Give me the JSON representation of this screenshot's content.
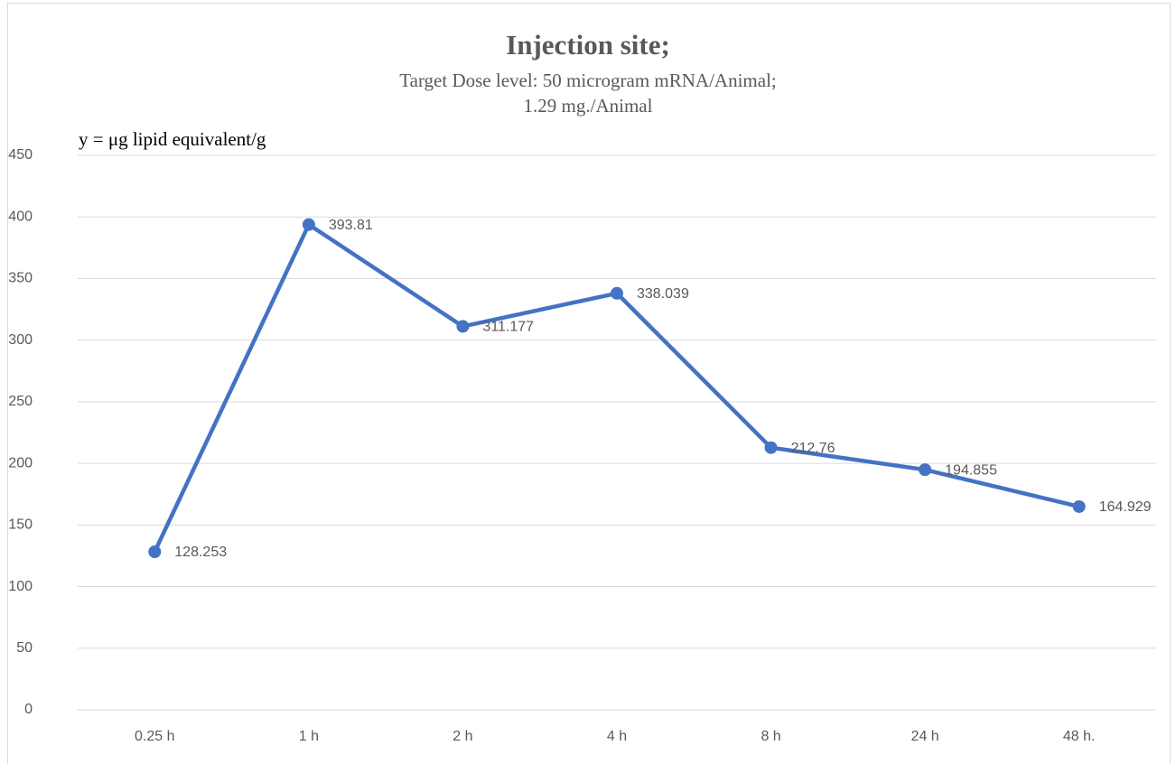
{
  "chart_data": {
    "type": "line",
    "title": "Injection site;",
    "subtitle": [
      "Target Dose level: 50 microgram mRNA/Animal;",
      "1.29 mg./Animal"
    ],
    "y_label": "y = μg lipid equivalent/g",
    "categories": [
      "0.25 h",
      "1 h",
      "2 h",
      "4 h",
      "8 h",
      "24 h",
      "48 h."
    ],
    "series": [
      {
        "name": "Injection site",
        "color": "#4472c4",
        "values": [
          128.253,
          393.81,
          311.177,
          338.039,
          212.76,
          194.855,
          164.929
        ]
      }
    ],
    "ylim": [
      0,
      450
    ],
    "yticks": [
      0,
      50,
      100,
      150,
      200,
      250,
      300,
      350,
      400,
      450
    ],
    "grid": true
  }
}
